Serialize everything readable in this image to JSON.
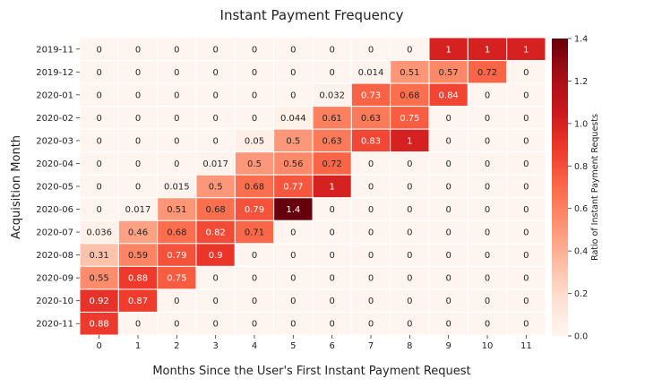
{
  "chart_data": {
    "type": "heatmap",
    "title": "Instant Payment Frequency",
    "xlabel": "Months Since the User's First Instant Payment Request",
    "ylabel": "Acquisition Month",
    "colorbar_label": "Ratio of Instant Payment Requests",
    "colormap": "Reds",
    "vmin": 0.0,
    "vmax": 1.4,
    "colorbar_ticks": [
      "0.0",
      "0.2",
      "0.4",
      "0.6",
      "0.8",
      "1.0",
      "1.2",
      "1.4"
    ],
    "x": [
      "0",
      "1",
      "2",
      "3",
      "4",
      "5",
      "6",
      "7",
      "8",
      "9",
      "10",
      "11"
    ],
    "y": [
      "2019-11",
      "2019-12",
      "2020-01",
      "2020-02",
      "2020-03",
      "2020-04",
      "2020-05",
      "2020-06",
      "2020-07",
      "2020-08",
      "2020-09",
      "2020-10",
      "2020-11"
    ],
    "values": [
      [
        0,
        0,
        0,
        0,
        0,
        0,
        0,
        0,
        0,
        1,
        1,
        1
      ],
      [
        0,
        0,
        0,
        0,
        0,
        0,
        0,
        0.014,
        0.51,
        0.57,
        0.72,
        0
      ],
      [
        0,
        0,
        0,
        0,
        0,
        0,
        0.032,
        0.73,
        0.68,
        0.84,
        0,
        0
      ],
      [
        0,
        0,
        0,
        0,
        0,
        0.044,
        0.61,
        0.63,
        0.75,
        0,
        0,
        0
      ],
      [
        0,
        0,
        0,
        0,
        0.05,
        0.5,
        0.63,
        0.83,
        1,
        0,
        0,
        0
      ],
      [
        0,
        0,
        0,
        0.017,
        0.5,
        0.56,
        0.72,
        0,
        0,
        0,
        0,
        0
      ],
      [
        0,
        0,
        0.015,
        0.5,
        0.68,
        0.77,
        1,
        0,
        0,
        0,
        0,
        0
      ],
      [
        0,
        0.017,
        0.51,
        0.68,
        0.79,
        1.4,
        0,
        0,
        0,
        0,
        0,
        0
      ],
      [
        0.036,
        0.46,
        0.68,
        0.82,
        0.71,
        0,
        0,
        0,
        0,
        0,
        0,
        0
      ],
      [
        0.31,
        0.59,
        0.79,
        0.9,
        0,
        0,
        0,
        0,
        0,
        0,
        0,
        0
      ],
      [
        0.55,
        0.88,
        0.75,
        0,
        0,
        0,
        0,
        0,
        0,
        0,
        0,
        0
      ],
      [
        0.92,
        0.87,
        0,
        0,
        0,
        0,
        0,
        0,
        0,
        0,
        0,
        0
      ],
      [
        0.88,
        0,
        0,
        0,
        0,
        0,
        0,
        0,
        0,
        0,
        0,
        0
      ]
    ]
  }
}
